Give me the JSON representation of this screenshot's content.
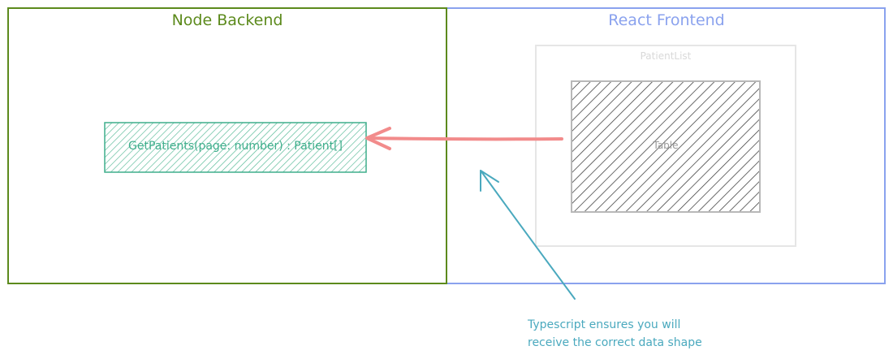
{
  "diagram": {
    "backend": {
      "title": "Node Backend",
      "color": "#5c8a1c"
    },
    "frontend": {
      "title": "React Frontend",
      "color": "#8aa2ee"
    },
    "patient_list": {
      "label": "PatientList"
    },
    "table": {
      "label": "Table"
    },
    "function_box": {
      "label": "GetPatients(page: number) : Patient[]",
      "color": "#3fae8c"
    },
    "arrow_color": "#f28b8b",
    "note": {
      "line1": "Typescript ensures you will",
      "line2": "receive the correct data shape",
      "color": "#4aa9be"
    }
  }
}
